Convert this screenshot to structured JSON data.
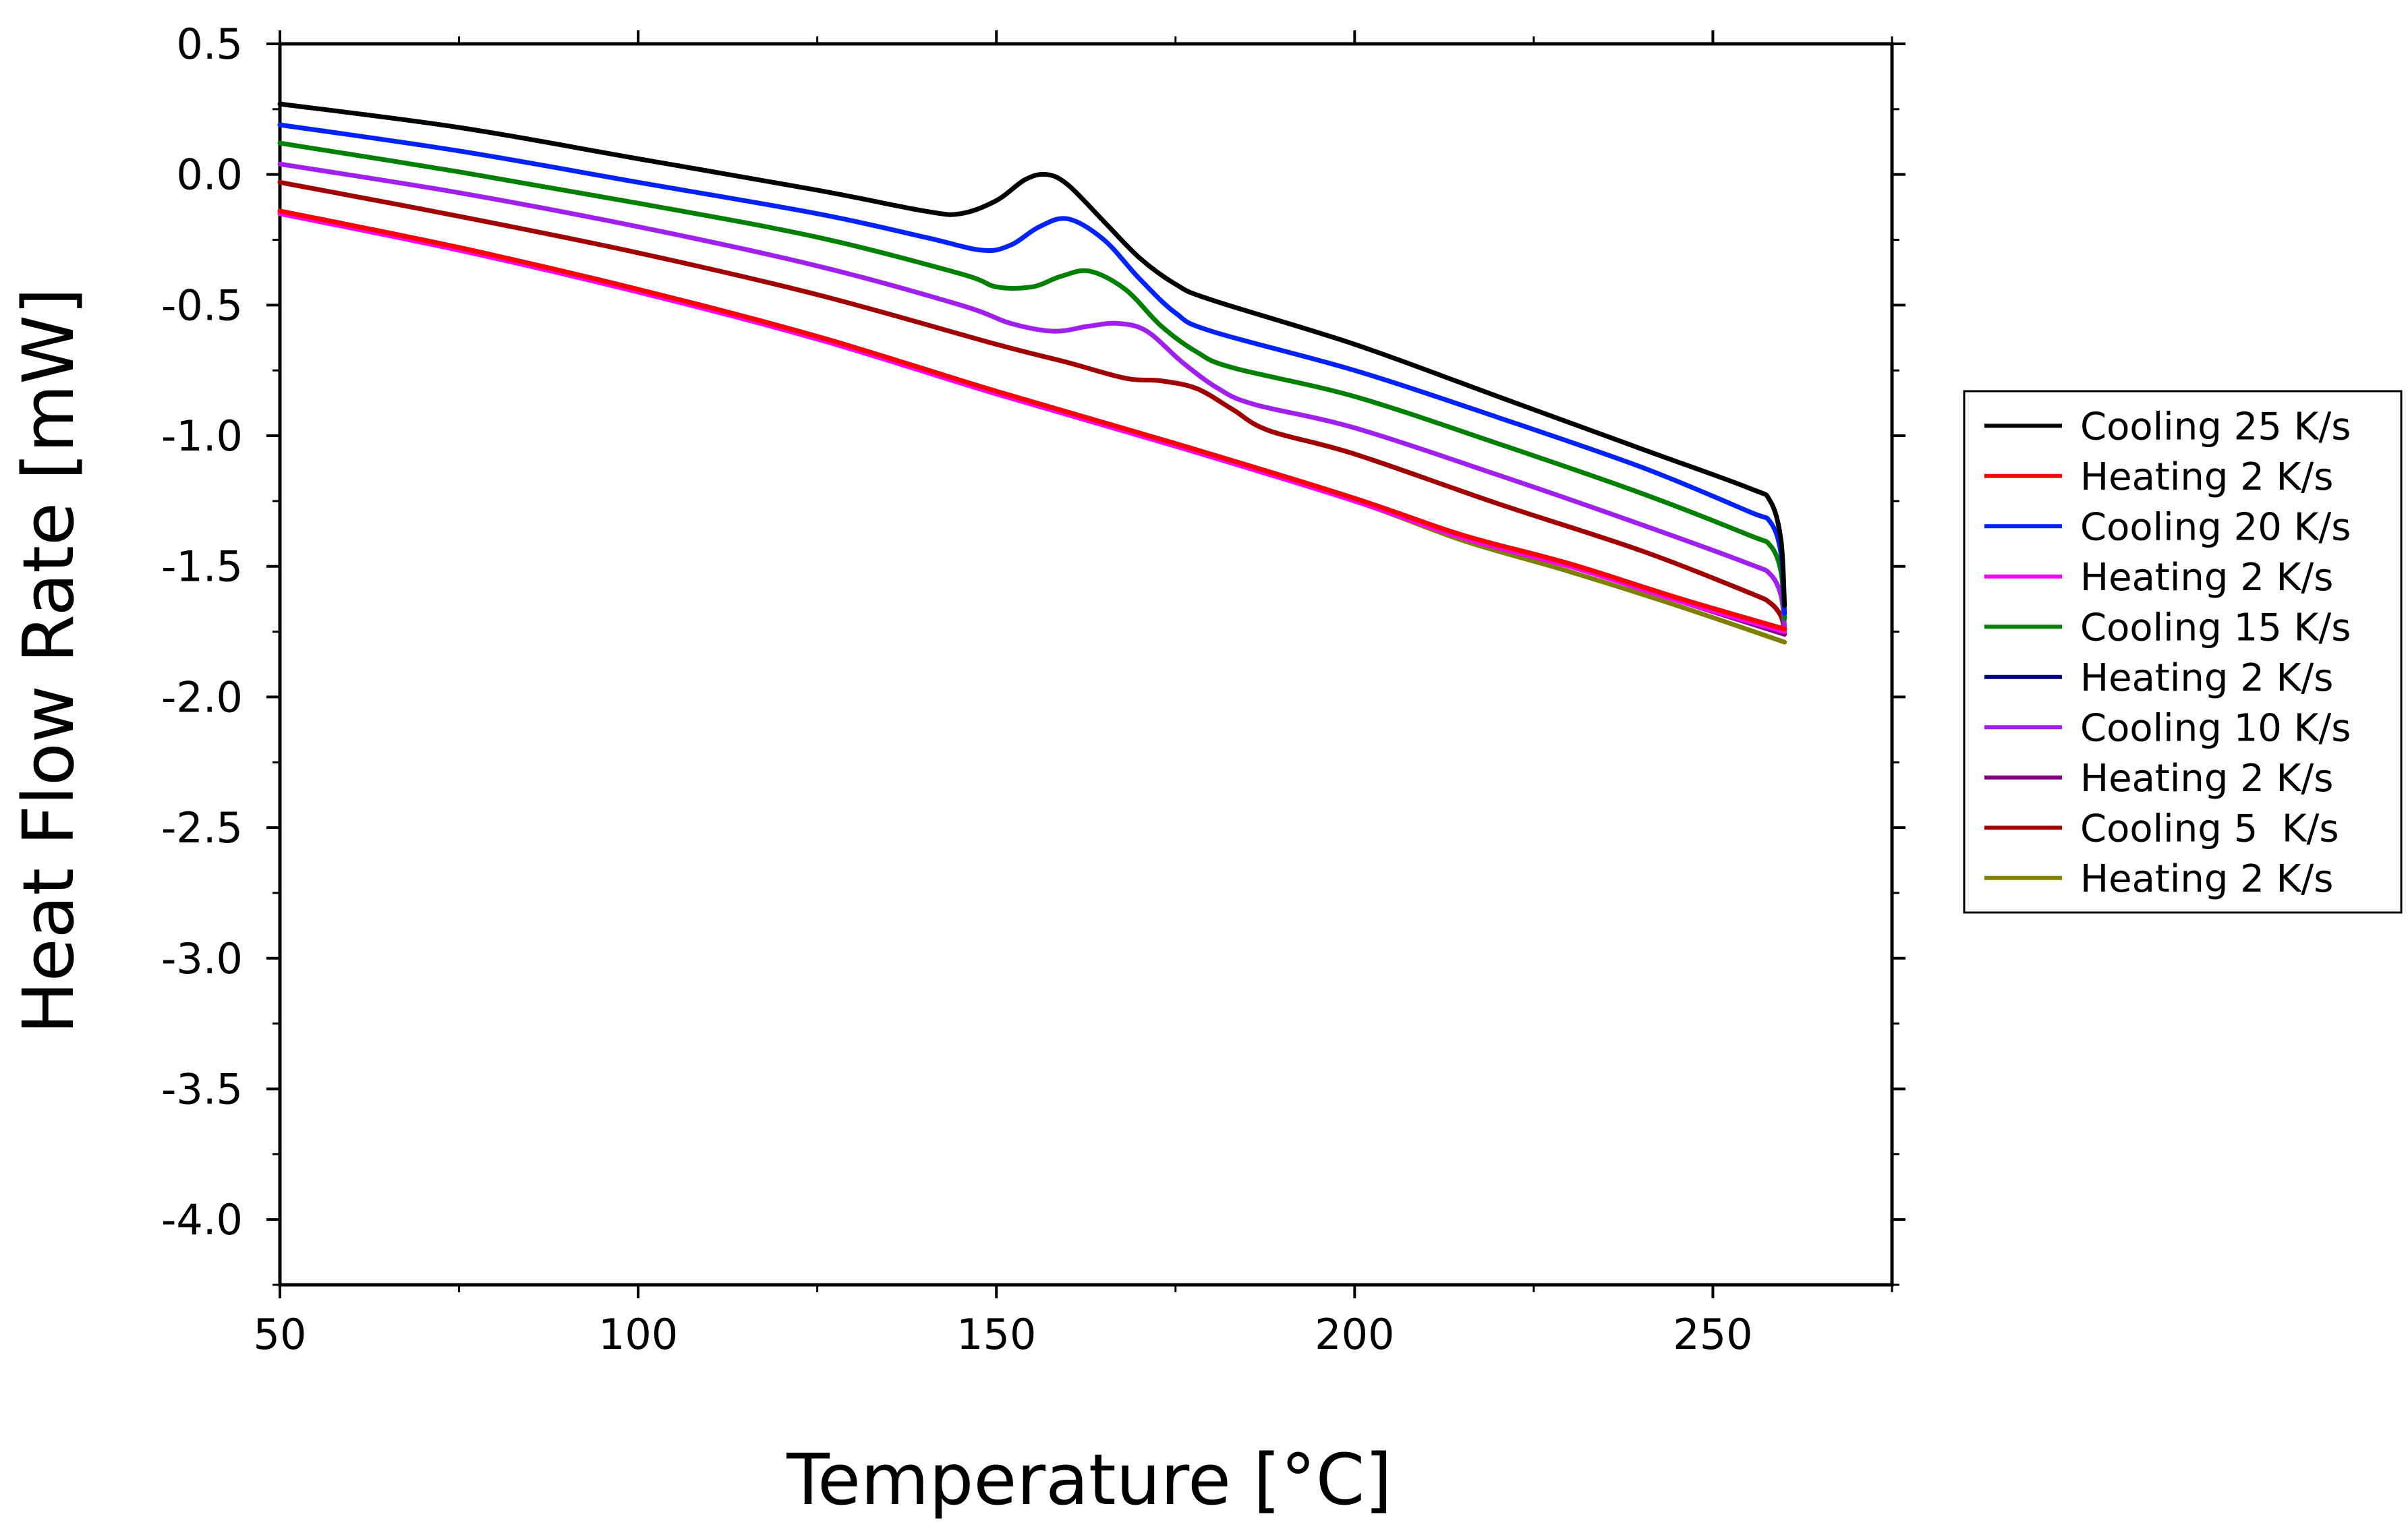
{
  "chart_data": {
    "type": "line",
    "title": "",
    "xlabel": "Temperature [°C]",
    "ylabel": "Heat Flow Rate [mW]",
    "xlim": [
      50,
      275
    ],
    "ylim": [
      -4.25,
      0.5
    ],
    "xticks": [
      50,
      100,
      150,
      200,
      250
    ],
    "xtick_labels": [
      "50",
      "100",
      "150",
      "200",
      "250"
    ],
    "yticks": [
      0.5,
      0.0,
      -0.5,
      -1.0,
      -1.5,
      -2.0,
      -2.5,
      -3.0,
      -3.5,
      -4.0
    ],
    "ytick_labels": [
      "0.5",
      "0.0",
      "-0.5",
      "-1.0",
      "-1.5",
      "-2.0",
      "-2.5",
      "-3.0",
      "-3.5",
      "-4.0"
    ],
    "grid": false,
    "legend_position": "right-outside",
    "series": [
      {
        "name": "Cooling 25 K/s",
        "color": "#000000",
        "x": [
          50,
          75,
          100,
          125,
          140,
          145,
          150,
          154,
          157,
          160,
          165,
          170,
          175,
          180,
          200,
          220,
          240,
          255,
          258,
          259.5,
          260
        ],
        "y": [
          0.27,
          0.18,
          0.06,
          -0.06,
          -0.14,
          -0.15,
          -0.1,
          -0.02,
          0.0,
          -0.04,
          -0.18,
          -0.32,
          -0.42,
          -0.48,
          -0.65,
          -0.85,
          -1.05,
          -1.2,
          -1.25,
          -1.4,
          -1.65
        ]
      },
      {
        "name": "Heating 2 K/s",
        "color": "#ff0000",
        "x": [
          50,
          75,
          100,
          125,
          150,
          175,
          200,
          215,
          230,
          245,
          260
        ],
        "y": [
          -0.14,
          -0.28,
          -0.44,
          -0.62,
          -0.83,
          -1.03,
          -1.24,
          -1.38,
          -1.49,
          -1.62,
          -1.74
        ]
      },
      {
        "name": "Cooling 20 K/s",
        "color": "#0022ff",
        "x": [
          50,
          75,
          100,
          125,
          140,
          148,
          152,
          156,
          160,
          165,
          170,
          175,
          180,
          200,
          220,
          240,
          255,
          258,
          259.5,
          260
        ],
        "y": [
          0.19,
          0.09,
          -0.03,
          -0.15,
          -0.24,
          -0.29,
          -0.27,
          -0.2,
          -0.17,
          -0.25,
          -0.4,
          -0.53,
          -0.6,
          -0.75,
          -0.93,
          -1.12,
          -1.29,
          -1.33,
          -1.45,
          -1.68
        ]
      },
      {
        "name": "Heating 2 K/s",
        "color": "#ff00ff",
        "x": [
          50,
          75,
          100,
          125,
          150,
          175,
          200,
          215,
          230,
          245,
          260
        ],
        "y": [
          -0.15,
          -0.29,
          -0.45,
          -0.63,
          -0.84,
          -1.04,
          -1.25,
          -1.39,
          -1.5,
          -1.63,
          -1.75
        ]
      },
      {
        "name": "Cooling 15 K/s",
        "color": "#008000",
        "x": [
          50,
          75,
          100,
          125,
          145,
          150,
          155,
          159,
          163,
          168,
          173,
          178,
          183,
          200,
          220,
          240,
          255,
          258,
          259.5,
          260
        ],
        "y": [
          0.12,
          0.01,
          -0.11,
          -0.24,
          -0.38,
          -0.43,
          -0.43,
          -0.39,
          -0.37,
          -0.44,
          -0.58,
          -0.68,
          -0.74,
          -0.85,
          -1.03,
          -1.22,
          -1.38,
          -1.42,
          -1.52,
          -1.7
        ]
      },
      {
        "name": "Heating 2 K/s",
        "color": "#000080",
        "x": [
          50,
          75,
          100,
          125,
          150,
          175,
          200,
          215,
          230,
          245,
          260
        ],
        "y": [
          -0.14,
          -0.28,
          -0.44,
          -0.62,
          -0.83,
          -1.03,
          -1.24,
          -1.38,
          -1.49,
          -1.62,
          -1.74
        ]
      },
      {
        "name": "Cooling 10 K/s",
        "color": "#a020f0",
        "x": [
          50,
          75,
          100,
          125,
          145,
          152,
          158,
          163,
          167,
          171,
          176,
          181,
          186,
          200,
          220,
          240,
          255,
          258,
          259.5,
          260
        ],
        "y": [
          0.04,
          -0.07,
          -0.2,
          -0.35,
          -0.5,
          -0.57,
          -0.6,
          -0.58,
          -0.57,
          -0.6,
          -0.72,
          -0.82,
          -0.88,
          -0.97,
          -1.15,
          -1.34,
          -1.49,
          -1.53,
          -1.61,
          -1.73
        ]
      },
      {
        "name": "Heating 2 K/s",
        "color": "#800080",
        "x": [
          50,
          75,
          100,
          125,
          150,
          175,
          200,
          215,
          230,
          245,
          260
        ],
        "y": [
          -0.14,
          -0.28,
          -0.44,
          -0.62,
          -0.83,
          -1.03,
          -1.24,
          -1.39,
          -1.5,
          -1.63,
          -1.76
        ]
      },
      {
        "name": "Cooling 5  K/s",
        "color": "#a00000",
        "x": [
          50,
          75,
          100,
          125,
          150,
          160,
          168,
          173,
          178,
          183,
          188,
          200,
          220,
          240,
          255,
          258,
          259.5,
          260
        ],
        "y": [
          -0.03,
          -0.16,
          -0.3,
          -0.46,
          -0.65,
          -0.72,
          -0.78,
          -0.79,
          -0.82,
          -0.9,
          -0.98,
          -1.07,
          -1.26,
          -1.44,
          -1.6,
          -1.64,
          -1.69,
          -1.75
        ]
      },
      {
        "name": "Heating 2 K/s",
        "color": "#808000",
        "x": [
          50,
          75,
          100,
          125,
          150,
          175,
          200,
          215,
          230,
          245,
          260
        ],
        "y": [
          -0.15,
          -0.29,
          -0.45,
          -0.63,
          -0.84,
          -1.04,
          -1.25,
          -1.4,
          -1.52,
          -1.65,
          -1.79
        ]
      }
    ]
  }
}
